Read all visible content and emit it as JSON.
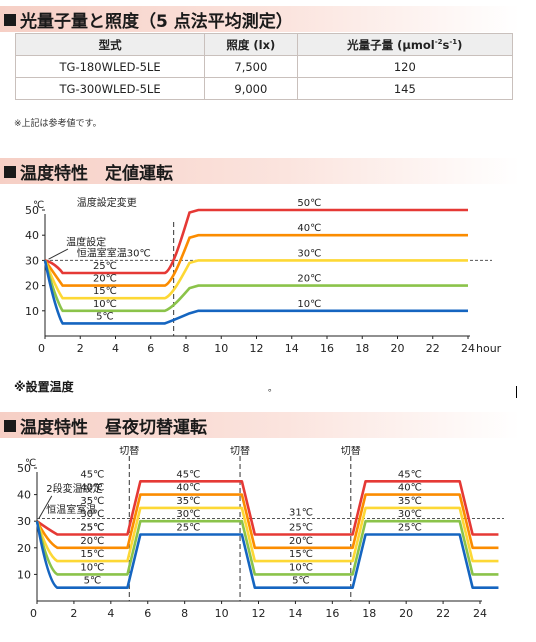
{
  "spec": {
    "title": "光量子量と照度（5 点法平均測定）",
    "headers": {
      "model": "型式",
      "illuminance": "照度 (lx)",
      "photon": "光量子量 (μmol",
      "unit_exp": "-2",
      "unit_mid": "s",
      "unit_exp2": "-1",
      "unit_end": ")"
    },
    "rows": [
      {
        "model": "TG-180WLED-5LE",
        "illuminance": "7,500",
        "photon": "120"
      },
      {
        "model": "TG-300WLED-5LE",
        "illuminance": "9,000",
        "photon": "145"
      }
    ],
    "note": "※上記は参考値です。"
  },
  "chart_constant": {
    "title": "温度特性　定値運転",
    "unit_label": "℃",
    "caption": "※設置温度",
    "dot": "。",
    "annotations": {
      "change": "温度設定変更",
      "setting": "温度設定",
      "room": "恒温室室温30℃"
    },
    "hour_unit": "hour"
  },
  "chart_daynight": {
    "title": "温度特性　昼夜切替運転",
    "unit_label": "℃",
    "annotations": {
      "switch": "切替",
      "two_stage": "2段変温設定",
      "room": "恒温室室温",
      "room31": "31℃"
    }
  },
  "chart_data": [
    {
      "type": "line",
      "title": "温度特性　定値運転",
      "xlabel": "hour",
      "ylabel": "℃",
      "xlim": [
        0,
        24
      ],
      "ylim": [
        0,
        50
      ],
      "x_ticks": [
        0,
        2,
        4,
        6,
        8,
        10,
        12,
        14,
        16,
        18,
        20,
        22,
        24
      ],
      "y_ticks": [
        0,
        10,
        20,
        30,
        40,
        50
      ],
      "reference_line": 30,
      "setting_change_hour": 7.3,
      "series": [
        {
          "name": "5℃",
          "color": "#1565c0",
          "phase1": 5,
          "phase2": 10,
          "label1": "5℃",
          "label2": "10℃"
        },
        {
          "name": "10℃",
          "color": "#8bc34a",
          "phase1": 10,
          "phase2": 20,
          "label1": "10℃",
          "label2": "20℃"
        },
        {
          "name": "15℃",
          "color": "#fdd835",
          "phase1": 15,
          "phase2": 30,
          "label1": "15℃",
          "label2": "30℃"
        },
        {
          "name": "20℃",
          "color": "#fb8c00",
          "phase1": 20,
          "phase2": 40,
          "label1": "20℃",
          "label2": "40℃"
        },
        {
          "name": "25℃",
          "color": "#e53935",
          "phase1": 25,
          "phase2": 50,
          "label1": "25℃",
          "label2": "50℃"
        }
      ]
    },
    {
      "type": "line",
      "title": "温度特性　昼夜切替運転",
      "xlabel": "",
      "ylabel": "℃",
      "xlim": [
        0,
        24
      ],
      "ylim": [
        0,
        50
      ],
      "x_ticks": [
        0,
        2,
        4,
        6,
        8,
        10,
        12,
        14,
        16,
        18,
        20,
        22,
        24
      ],
      "y_ticks": [
        0,
        10,
        20,
        30,
        40,
        50
      ],
      "reference_line": 31,
      "switch_hours": [
        5,
        11,
        17
      ],
      "series": [
        {
          "name": "5℃",
          "color": "#1565c0",
          "low": 5,
          "high": 25,
          "label_low": "5℃",
          "label_high": "25℃"
        },
        {
          "name": "10℃",
          "color": "#8bc34a",
          "low": 10,
          "high": 30,
          "label_low": "10℃",
          "label_high": "30℃"
        },
        {
          "name": "15℃",
          "color": "#fdd835",
          "low": 15,
          "high": 35,
          "label_low": "15℃",
          "label_high": "35℃"
        },
        {
          "name": "20℃",
          "color": "#fb8c00",
          "low": 20,
          "high": 40,
          "label_low": "20℃",
          "label_high": "40℃"
        },
        {
          "name": "25℃",
          "color": "#e53935",
          "low": 25,
          "high": 45,
          "label_low": "25℃",
          "label_high": "45℃"
        }
      ]
    }
  ]
}
